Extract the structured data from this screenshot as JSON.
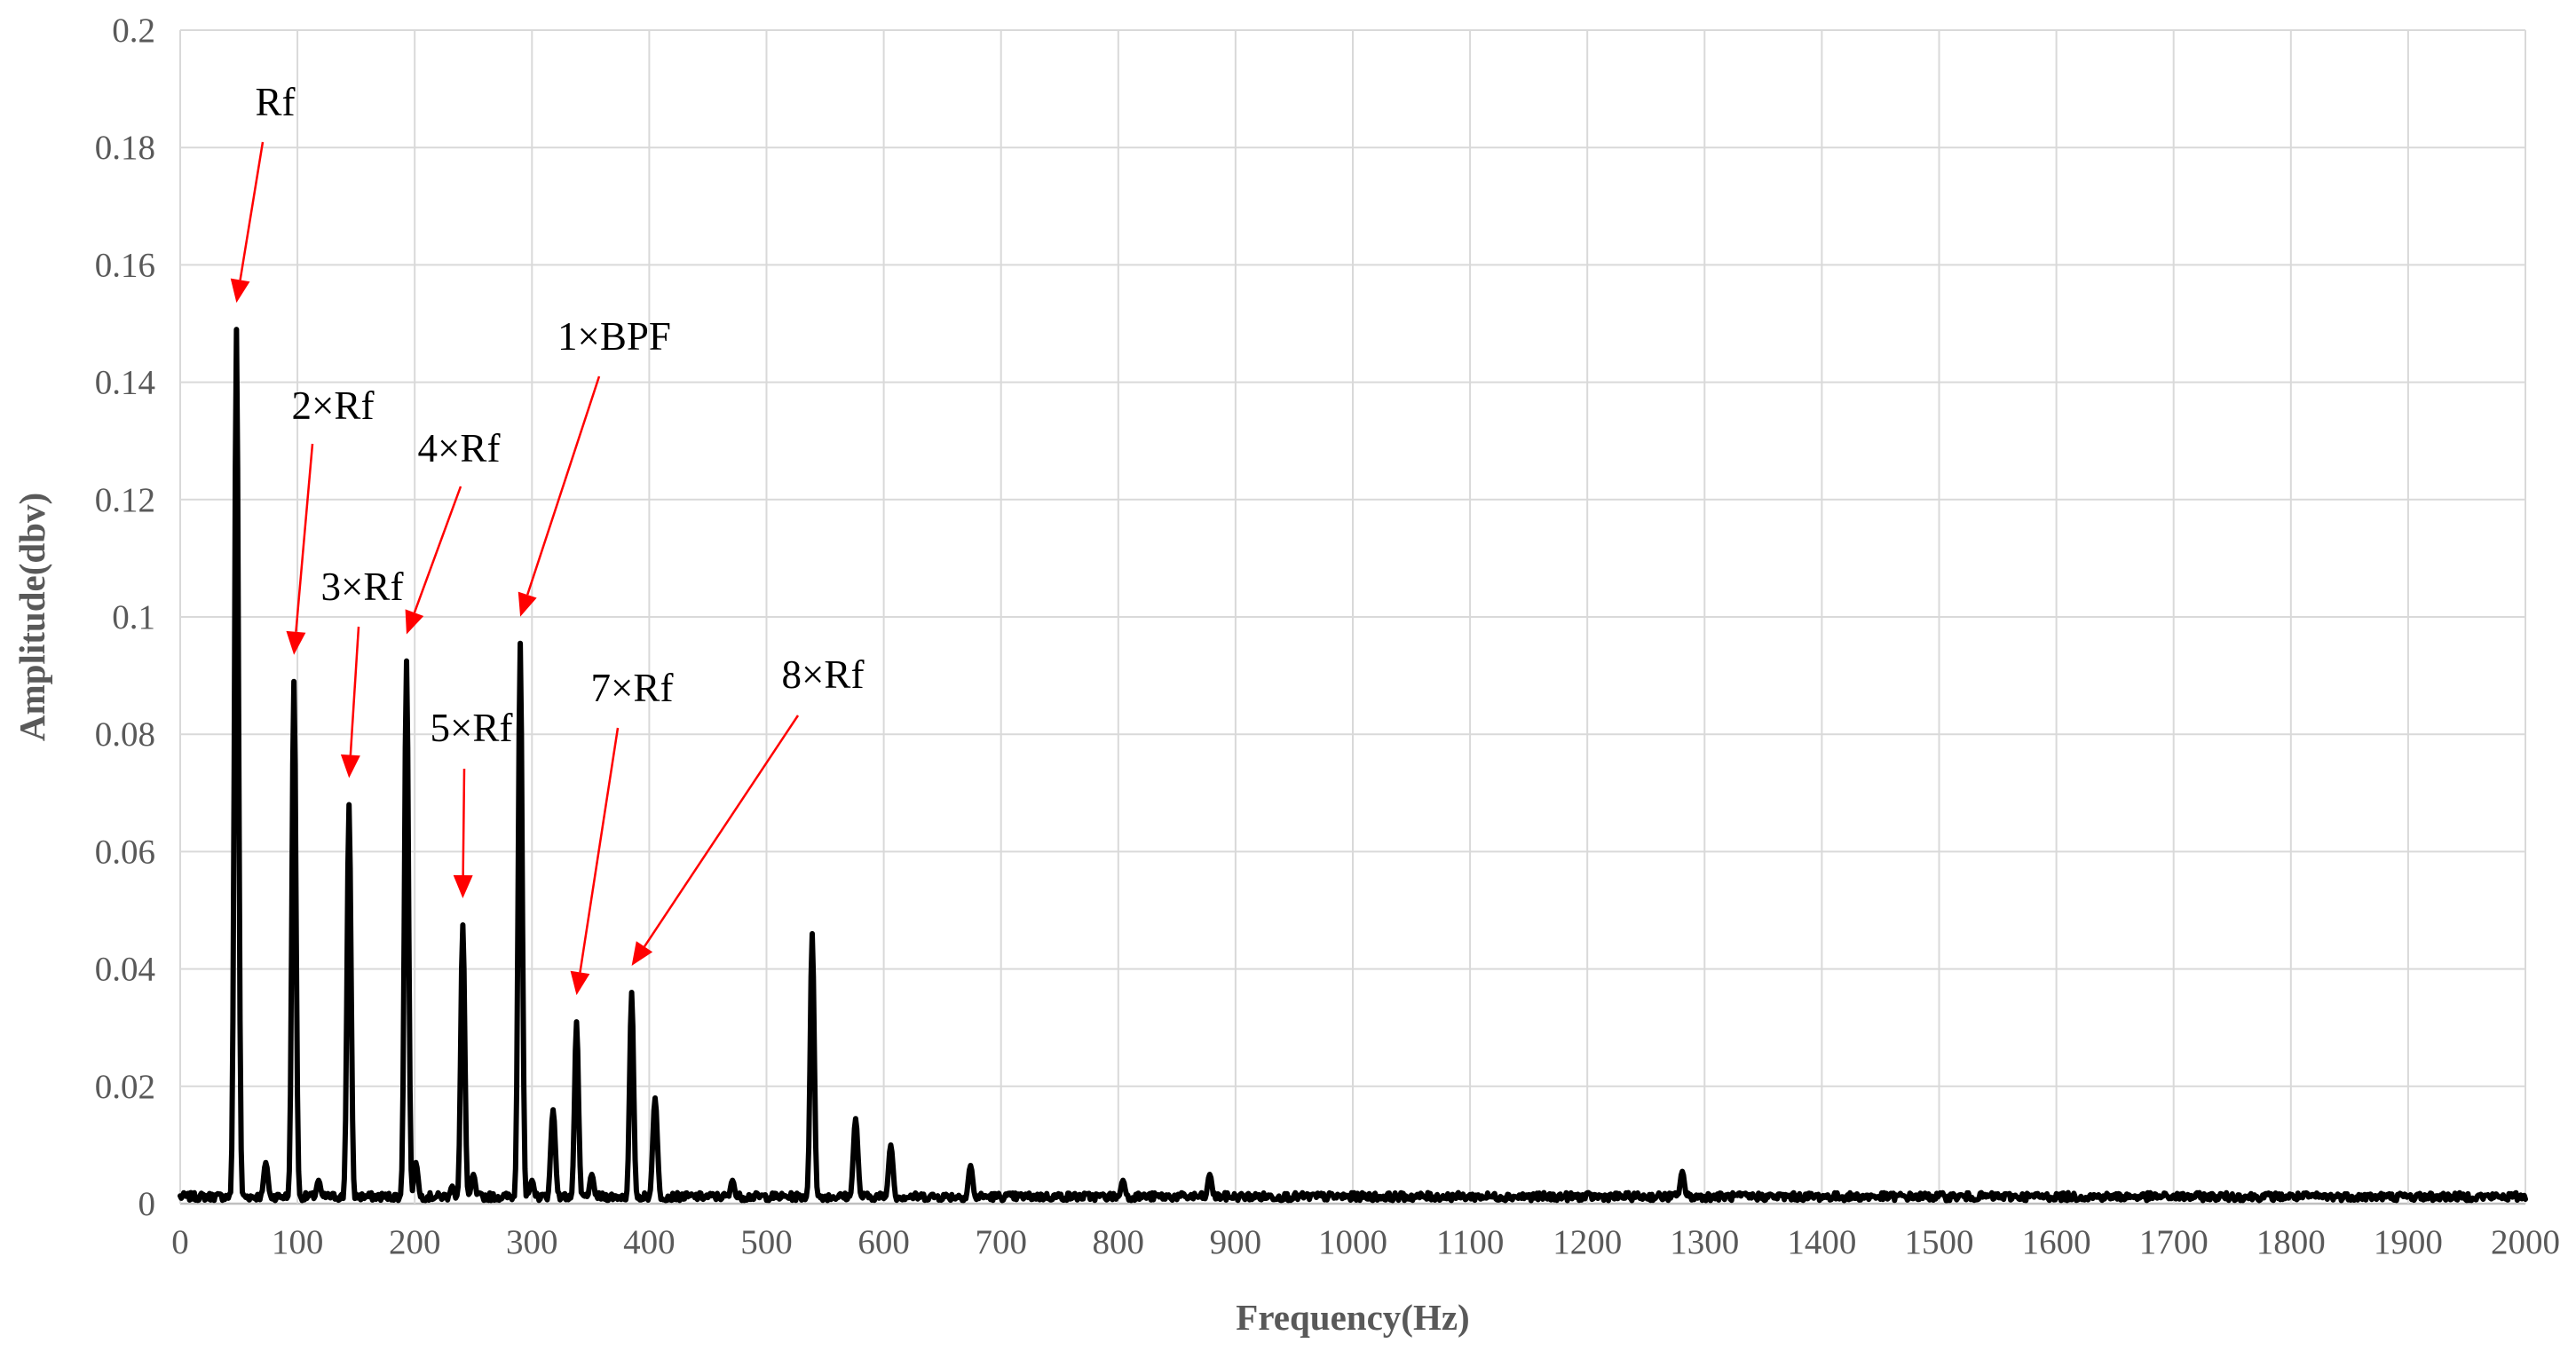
{
  "chart_data": {
    "type": "line",
    "title": "",
    "xlabel": "Frequency(Hz)",
    "ylabel": "Amplitude(dbv)",
    "xlim": [
      0,
      2000
    ],
    "ylim": [
      0,
      0.2
    ],
    "grid": true,
    "legend": "none",
    "line_color": "#000000",
    "annotation_color": "#ff0000",
    "x_ticks": [
      0,
      100,
      200,
      300,
      400,
      500,
      600,
      700,
      800,
      900,
      1000,
      1100,
      1200,
      1300,
      1400,
      1500,
      1600,
      1700,
      1800,
      1900,
      2000
    ],
    "y_ticks": [
      "0",
      "0.02",
      "0.04",
      "0.06",
      "0.08",
      "0.1",
      "0.12",
      "0.14",
      "0.16",
      "0.18",
      "0.2"
    ],
    "series": [
      {
        "noise_level": 0.0015,
        "peaks": [
          {
            "x": 48,
            "y": 0.149
          },
          {
            "x": 97,
            "y": 0.089
          },
          {
            "x": 144,
            "y": 0.068
          },
          {
            "x": 193,
            "y": 0.0925
          },
          {
            "x": 241,
            "y": 0.0475
          },
          {
            "x": 290,
            "y": 0.0955
          },
          {
            "x": 318,
            "y": 0.016
          },
          {
            "x": 338,
            "y": 0.031
          },
          {
            "x": 385,
            "y": 0.036
          },
          {
            "x": 405,
            "y": 0.018
          },
          {
            "x": 539,
            "y": 0.046
          },
          {
            "x": 576,
            "y": 0.0145
          },
          {
            "x": 606,
            "y": 0.01
          },
          {
            "x": 674,
            "y": 0.0065
          },
          {
            "x": 878,
            "y": 0.005
          },
          {
            "x": 1281,
            "y": 0.0055
          },
          {
            "x": 73,
            "y": 0.007
          },
          {
            "x": 201,
            "y": 0.007
          },
          {
            "x": 250,
            "y": 0.005
          },
          {
            "x": 351,
            "y": 0.005
          },
          {
            "x": 471,
            "y": 0.004
          },
          {
            "x": 804,
            "y": 0.004
          },
          {
            "x": 232,
            "y": 0.003
          },
          {
            "x": 118,
            "y": 0.004
          },
          {
            "x": 300,
            "y": 0.004
          }
        ]
      }
    ],
    "annotations": [
      {
        "text": "Rf",
        "x": 48,
        "y": 0.149
      },
      {
        "text": "2×Rf",
        "x": 97,
        "y": 0.089
      },
      {
        "text": "3×Rf",
        "x": 144,
        "y": 0.068
      },
      {
        "text": "4×Rf",
        "x": 193,
        "y": 0.0925
      },
      {
        "text": "5×Rf",
        "x": 241,
        "y": 0.0475
      },
      {
        "text": "1×BPF",
        "x": 290,
        "y": 0.0955
      },
      {
        "text": "7×Rf",
        "x": 338,
        "y": 0.031
      },
      {
        "text": "8×Rf",
        "x": 385,
        "y": 0.036
      }
    ]
  }
}
